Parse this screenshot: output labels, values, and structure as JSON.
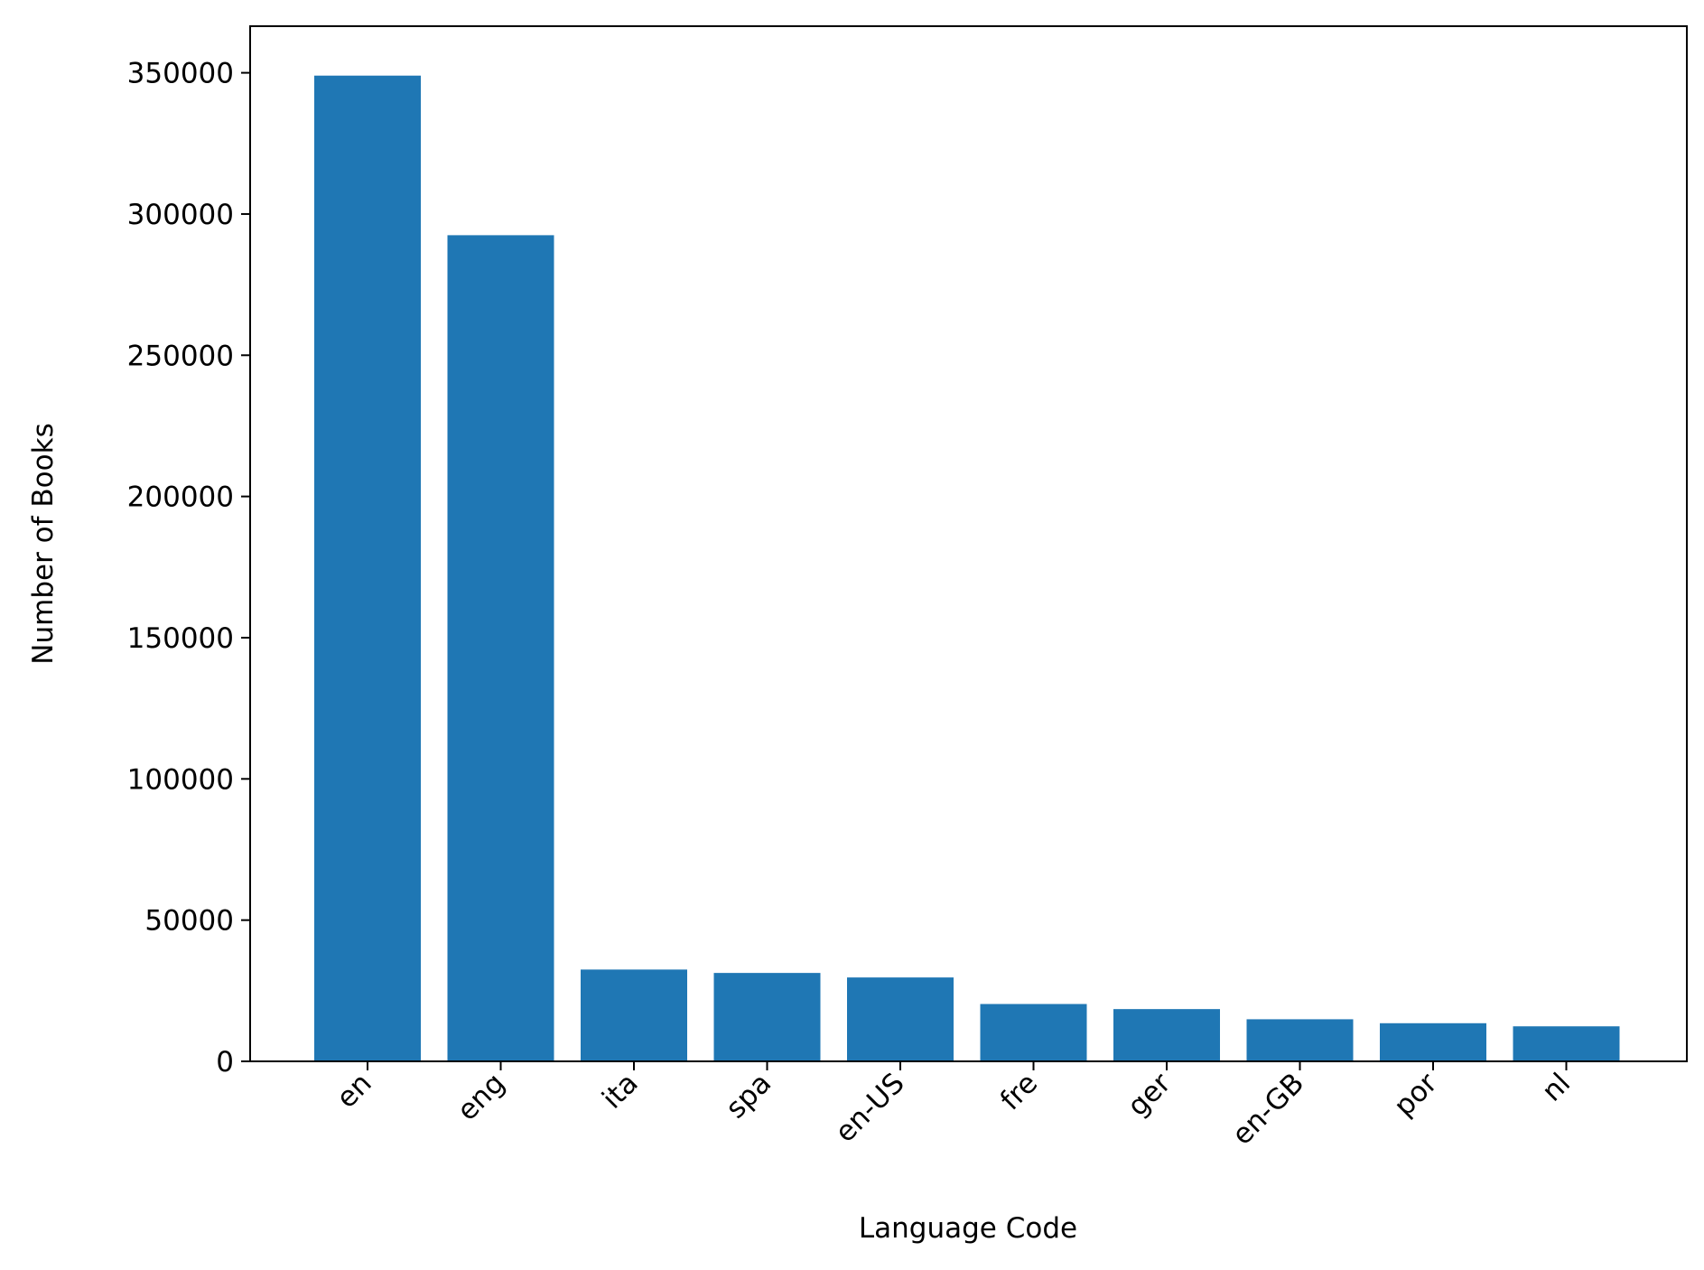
{
  "chart_data": {
    "type": "bar",
    "title": "",
    "xlabel": "Language Code",
    "ylabel": "Number of Books",
    "categories": [
      "en",
      "eng",
      "ita",
      "spa",
      "en-US",
      "fre",
      "ger",
      "en-GB",
      "por",
      "nl"
    ],
    "values": [
      349000,
      292500,
      32500,
      31300,
      29700,
      20300,
      18500,
      14900,
      13500,
      12400
    ],
    "ylim": [
      0,
      366500
    ],
    "yticks": [
      0,
      50000,
      100000,
      150000,
      200000,
      250000,
      300000,
      350000
    ],
    "ytick_labels": [
      "0",
      "50000",
      "100000",
      "150000",
      "200000",
      "250000",
      "300000",
      "350000"
    ],
    "bar_color": "#1f77b4",
    "grid": false,
    "legend": false
  }
}
